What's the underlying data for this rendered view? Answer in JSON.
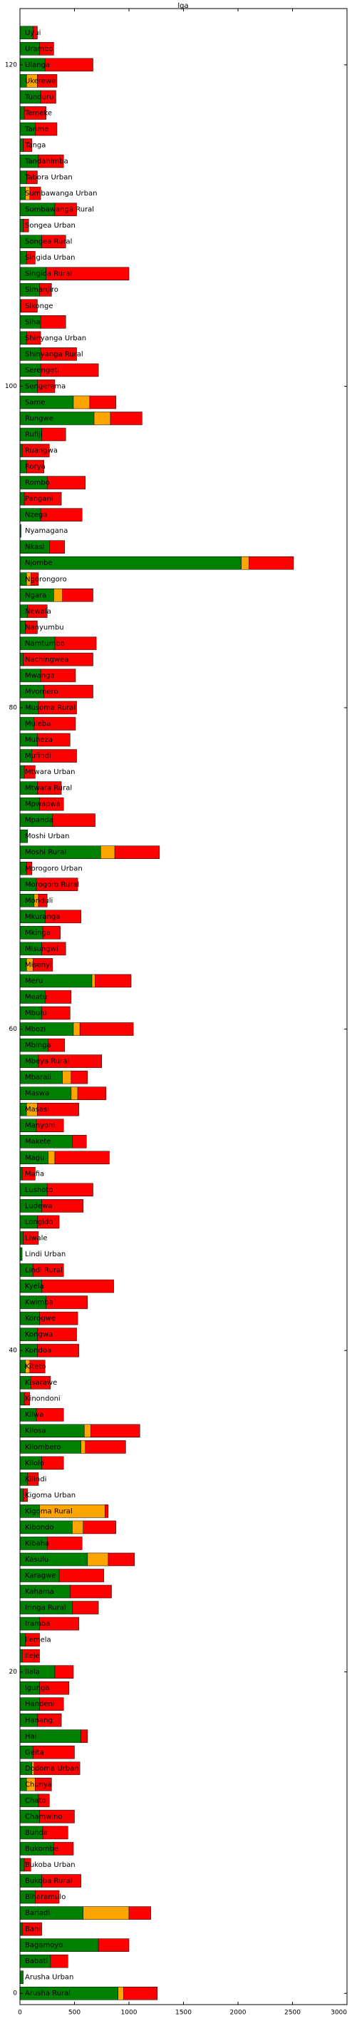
{
  "chart_data": {
    "type": "barh_stacked",
    "title": "lga",
    "categories": [
      "Arusha Rural",
      "Arusha Urban",
      "Babati",
      "Bagamoyo",
      "Bahi",
      "Bariadi",
      "Biharamulo",
      "Bukoba Rural",
      "Bukoba Urban",
      "Bukombe",
      "Bunda",
      "Chamwino",
      "Chato",
      "Chunya",
      "Dodoma Urban",
      "Geita",
      "Hai",
      "Hanang",
      "Handeni",
      "Igunga",
      "Ilala",
      "Ileje",
      "Ilemela",
      "Iramba",
      "Iringa Rural",
      "Kahama",
      "Karagwe",
      "Kasulu",
      "Kibaha",
      "Kibondo",
      "Kigoma Rural",
      "Kigoma Urban",
      "Kilindi",
      "Kilolo",
      "Kilombero",
      "Kilosa",
      "Kilwa",
      "Kinondoni",
      "Kisarawe",
      "Kiteto",
      "Kondoa",
      "Kongwa",
      "Korogwe",
      "Kwimba",
      "Kyela",
      "Lindi Rural",
      "Lindi Urban",
      "Liwale",
      "Longido",
      "Ludewa",
      "Lushoto",
      "Mafia",
      "Magu",
      "Makete",
      "Manyoni",
      "Masasi",
      "Maswa",
      "Mbarali",
      "Mbeya Rural",
      "Mbinga",
      "Mbozi",
      "Mbulu",
      "Meatu",
      "Meru",
      "Misenyi",
      "Misungwi",
      "Mkinga",
      "Mkuranga",
      "Monduli",
      "Morogoro Rural",
      "Morogoro Urban",
      "Moshi Rural",
      "Moshi Urban",
      "Mpanda",
      "Mpwapwa",
      "Mtwara Rural",
      "Mtwara Urban",
      "Mufindi",
      "Muheza",
      "Muleba",
      "Musoma Rural",
      "Mvomero",
      "Mwanga",
      "Nachingwea",
      "Namtumbo",
      "Nanyumbu",
      "Newala",
      "Ngara",
      "Ngorongoro",
      "Njombe",
      "Nkasi",
      "Nyamagana",
      "Nzega",
      "Pangani",
      "Rombo",
      "Rorya",
      "Ruangwa",
      "Rufiji",
      "Rungwe",
      "Same",
      "Sengerema",
      "Serengeti",
      "Shinyanga Rural",
      "Shinyanga Urban",
      "Siha",
      "Sikonge",
      "Simanjiro",
      "Singida Rural",
      "Singida Urban",
      "Songea Rural",
      "Songea Urban",
      "Sumbawanga Rural",
      "Sumbawanga Urban",
      "Tabora Urban",
      "Tandahimba",
      "Tanga",
      "Tarime",
      "Temeke",
      "Tunduru",
      "Ukerewe",
      "Ulanga",
      "Urambo",
      "Uyui"
    ],
    "series": [
      {
        "color": "#008000",
        "values": [
          900,
          30,
          280,
          720,
          20,
          580,
          140,
          200,
          40,
          310,
          210,
          180,
          170,
          60,
          110,
          120,
          560,
          160,
          180,
          180,
          320,
          20,
          50,
          180,
          480,
          460,
          360,
          620,
          250,
          480,
          180,
          30,
          70,
          200,
          560,
          590,
          150,
          40,
          100,
          50,
          160,
          160,
          180,
          240,
          200,
          120,
          20,
          30,
          160,
          200,
          250,
          20,
          260,
          480,
          150,
          60,
          470,
          390,
          170,
          260,
          490,
          200,
          230,
          660,
          60,
          200,
          210,
          230,
          130,
          150,
          60,
          740,
          70,
          300,
          180,
          160,
          40,
          110,
          160,
          130,
          170,
          220,
          190,
          30,
          320,
          50,
          70,
          310,
          60,
          2030,
          270,
          10,
          190,
          40,
          250,
          60,
          20,
          200,
          680,
          490,
          160,
          190,
          190,
          60,
          190,
          10,
          180,
          240,
          60,
          200,
          30,
          320,
          50,
          60,
          170,
          30,
          140,
          40,
          190,
          60,
          230,
          180,
          120
        ]
      },
      {
        "color": "#ffa500",
        "values": [
          50,
          0,
          0,
          0,
          0,
          420,
          0,
          0,
          0,
          0,
          0,
          0,
          0,
          80,
          20,
          0,
          0,
          0,
          0,
          0,
          0,
          0,
          0,
          0,
          0,
          0,
          0,
          190,
          0,
          100,
          600,
          0,
          0,
          0,
          40,
          60,
          0,
          0,
          0,
          40,
          0,
          0,
          0,
          0,
          0,
          0,
          0,
          0,
          0,
          0,
          0,
          0,
          60,
          0,
          0,
          100,
          60,
          80,
          0,
          0,
          60,
          0,
          0,
          30,
          60,
          0,
          0,
          0,
          40,
          0,
          0,
          130,
          0,
          0,
          0,
          0,
          0,
          0,
          0,
          0,
          0,
          0,
          0,
          0,
          0,
          0,
          0,
          80,
          40,
          70,
          0,
          0,
          0,
          0,
          0,
          0,
          0,
          0,
          150,
          150,
          0,
          0,
          0,
          0,
          0,
          0,
          0,
          0,
          0,
          0,
          0,
          0,
          40,
          0,
          0,
          0,
          0,
          0,
          0,
          100,
          0,
          0,
          0
        ]
      },
      {
        "color": "#ff0000",
        "values": [
          310,
          0,
          160,
          280,
          180,
          200,
          220,
          360,
          60,
          180,
          230,
          320,
          100,
          150,
          420,
          380,
          60,
          220,
          220,
          270,
          170,
          160,
          130,
          360,
          240,
          380,
          410,
          240,
          320,
          300,
          30,
          40,
          100,
          200,
          370,
          450,
          250,
          50,
          180,
          140,
          380,
          360,
          350,
          380,
          660,
          280,
          0,
          140,
          200,
          380,
          420,
          120,
          500,
          130,
          250,
          380,
          260,
          150,
          580,
          150,
          490,
          260,
          240,
          330,
          180,
          220,
          160,
          330,
          80,
          380,
          50,
          410,
          0,
          390,
          220,
          220,
          100,
          410,
          300,
          380,
          350,
          450,
          320,
          640,
          380,
          110,
          180,
          280,
          70,
          410,
          140,
          0,
          380,
          340,
          350,
          160,
          250,
          220,
          290,
          240,
          160,
          530,
          330,
          130,
          230,
          150,
          110,
          760,
          80,
          220,
          50,
          200,
          100,
          100,
          230,
          80,
          200,
          200,
          140,
          180,
          440,
          130,
          40
        ]
      }
    ],
    "xlim": [
      0,
      3000
    ],
    "xticks": [
      0,
      500,
      1000,
      1500,
      2000,
      2500,
      3000
    ],
    "ylim": [
      -0.7,
      123.5
    ],
    "yticks": [
      0,
      20,
      40,
      60,
      80,
      100,
      120
    ]
  }
}
